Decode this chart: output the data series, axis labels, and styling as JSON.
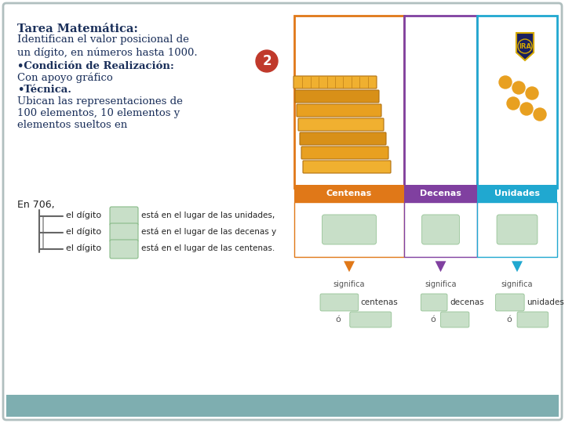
{
  "bg_color": "#ffffff",
  "border_color": "#b0bfbf",
  "title_text": "Tarea Matemática:",
  "title_color": "#1a2f5a",
  "body_lines": [
    "Identifican el valor posicional de",
    "un dígito, en números hasta 1000."
  ],
  "body_color": "#1a2f5a",
  "condition_bold": "•Condición de Realización:",
  "condition_normal": "Con apoyo gráfico",
  "tecnica_bold": "•Técnica.",
  "tecnica_normal": [
    "Ubican las representaciones de",
    "100 elementos, 10 elementos y",
    "elementos sueltos en"
  ],
  "text_color": "#1a2f5a",
  "badge_number": "2",
  "badge_bg": "#c0392b",
  "badge_text_color": "#ffffff",
  "col1_color": "#e07818",
  "col2_color": "#8040a0",
  "col3_color": "#20a8d0",
  "header_centenas": "Centenas",
  "header_decenas": "Decenas",
  "header_unidades": "Unidades",
  "header_bg_centenas": "#e07818",
  "header_bg_decenas": "#8040a0",
  "header_bg_unidades": "#20a8d0",
  "significa_color": "#555555",
  "green_box_color": "#c8dfc8",
  "bottom_bar_color": "#7eaeb0",
  "bracket_color": "#666666",
  "dot_color": "#e8a020",
  "stack_colors": [
    "#f0b030",
    "#e8a020",
    "#d89018",
    "#f0b030",
    "#e8a020",
    "#d89018",
    "#f0b030"
  ]
}
